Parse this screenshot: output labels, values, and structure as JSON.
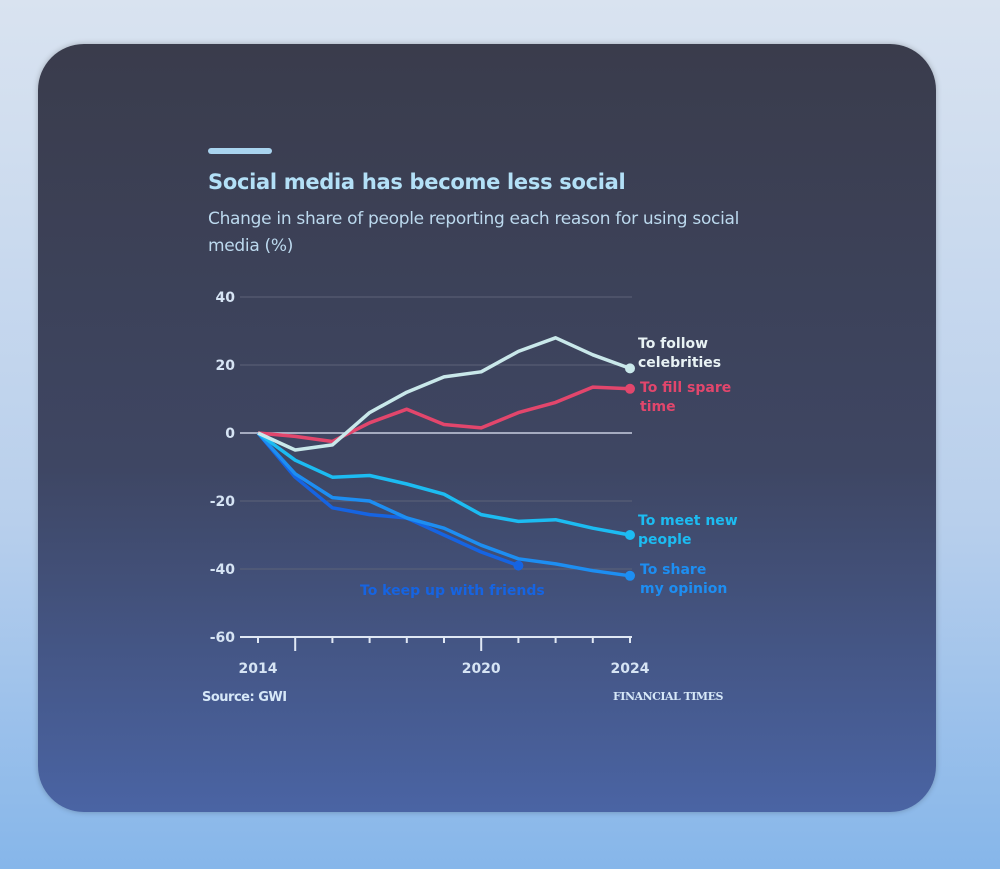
{
  "chart_data": {
    "type": "line",
    "title": "Social media has become less social",
    "subtitle": "Change in share of people reporting each reason for using social media (%)",
    "xlabel": "",
    "ylabel": "",
    "x": [
      2014,
      2015,
      2016,
      2017,
      2018,
      2019,
      2020,
      2021,
      2022,
      2023,
      2024
    ],
    "xticks": [
      "2014",
      "2020",
      "2024"
    ],
    "ylim": [
      -60,
      40
    ],
    "yticks": [
      "40",
      "20",
      "0",
      "-20",
      "-40",
      "-60"
    ],
    "grid": true,
    "series": [
      {
        "name": "To follow celebrities",
        "label_lines": [
          "To follow",
          "celebrities"
        ],
        "color": "#c9e8ea",
        "values": [
          0,
          -5,
          -3.5,
          6,
          12,
          16.5,
          18,
          24,
          28,
          23,
          19
        ]
      },
      {
        "name": "To fill spare time",
        "label_lines": [
          "To fill spare",
          "time"
        ],
        "color": "#e2466c",
        "values": [
          0,
          -1,
          -2.5,
          3,
          7,
          2.5,
          1.5,
          6,
          9,
          13.5,
          13
        ]
      },
      {
        "name": "To meet new people",
        "label_lines": [
          "To meet new",
          "people"
        ],
        "color": "#1cbcf2",
        "values": [
          0,
          -8,
          -13,
          -12.5,
          -15,
          -18,
          -24,
          -26,
          -25.5,
          -28,
          -30
        ]
      },
      {
        "name": "To share my opinion",
        "label_lines": [
          "To share",
          "my opinion"
        ],
        "color": "#1d8ef2",
        "values": [
          0,
          -12,
          -19,
          -20,
          -25,
          -28,
          -33,
          -37,
          -38.5,
          -40.5,
          -42
        ]
      },
      {
        "name": "To keep up with friends",
        "label_lines": [
          "To keep up with friends"
        ],
        "color": "#1664e2",
        "values": [
          0,
          -13,
          -22,
          -24,
          -25,
          -30,
          -35,
          -39,
          null,
          null,
          null
        ]
      }
    ],
    "source": "Source: GWI",
    "publisher": "FINANCIAL TIMES"
  }
}
